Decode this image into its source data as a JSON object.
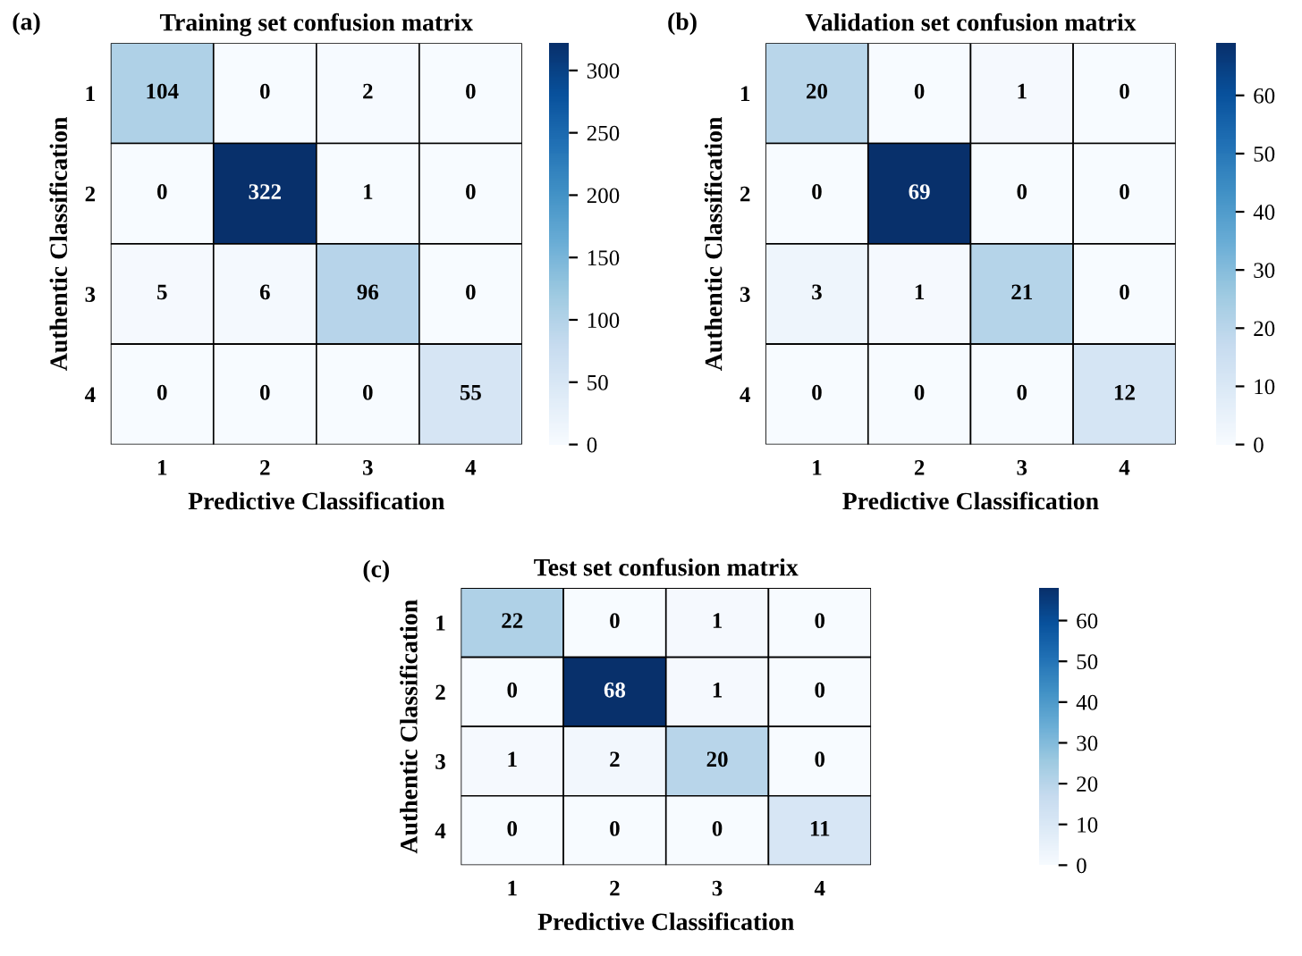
{
  "chart_data": [
    {
      "type": "heatmap",
      "title": "Training set confusion matrix",
      "xlabel": "Predictive Classification",
      "ylabel": "Authentic Classification",
      "annotations": [
        "(a)"
      ],
      "categories": [
        "1",
        "2",
        "3",
        "4"
      ],
      "y_categories": [
        "1",
        "2",
        "3",
        "4"
      ],
      "cells": [
        [
          104,
          0,
          2,
          0
        ],
        [
          0,
          322,
          1,
          0
        ],
        [
          5,
          6,
          96,
          0
        ],
        [
          0,
          0,
          0,
          55
        ]
      ],
      "data_labels": true,
      "clim": [
        0,
        322
      ],
      "cticks": [
        0,
        50,
        100,
        150,
        200,
        250,
        300
      ]
    },
    {
      "type": "heatmap",
      "title": "Validation set confusion matrix",
      "xlabel": "Predictive Classification",
      "ylabel": "Authentic Classification",
      "annotations": [
        "(b)"
      ],
      "categories": [
        "1",
        "2",
        "3",
        "4"
      ],
      "y_categories": [
        "1",
        "2",
        "3",
        "4"
      ],
      "cells": [
        [
          20,
          0,
          1,
          0
        ],
        [
          0,
          69,
          0,
          0
        ],
        [
          3,
          1,
          21,
          0
        ],
        [
          0,
          0,
          0,
          12
        ]
      ],
      "data_labels": true,
      "clim": [
        0,
        69
      ],
      "cticks": [
        0,
        10,
        20,
        30,
        40,
        50,
        60
      ]
    },
    {
      "type": "heatmap",
      "title": "Test set confusion matrix",
      "xlabel": "Predictive Classification",
      "ylabel": "Authentic Classification",
      "annotations": [
        "(c)"
      ],
      "categories": [
        "1",
        "2",
        "3",
        "4"
      ],
      "y_categories": [
        "1",
        "2",
        "3",
        "4"
      ],
      "cells": [
        [
          22,
          0,
          1,
          0
        ],
        [
          0,
          68,
          1,
          0
        ],
        [
          1,
          2,
          20,
          0
        ],
        [
          0,
          0,
          0,
          11
        ]
      ],
      "data_labels": true,
      "clim": [
        0,
        68
      ],
      "cticks": [
        0,
        10,
        20,
        30,
        40,
        50,
        60
      ]
    }
  ]
}
